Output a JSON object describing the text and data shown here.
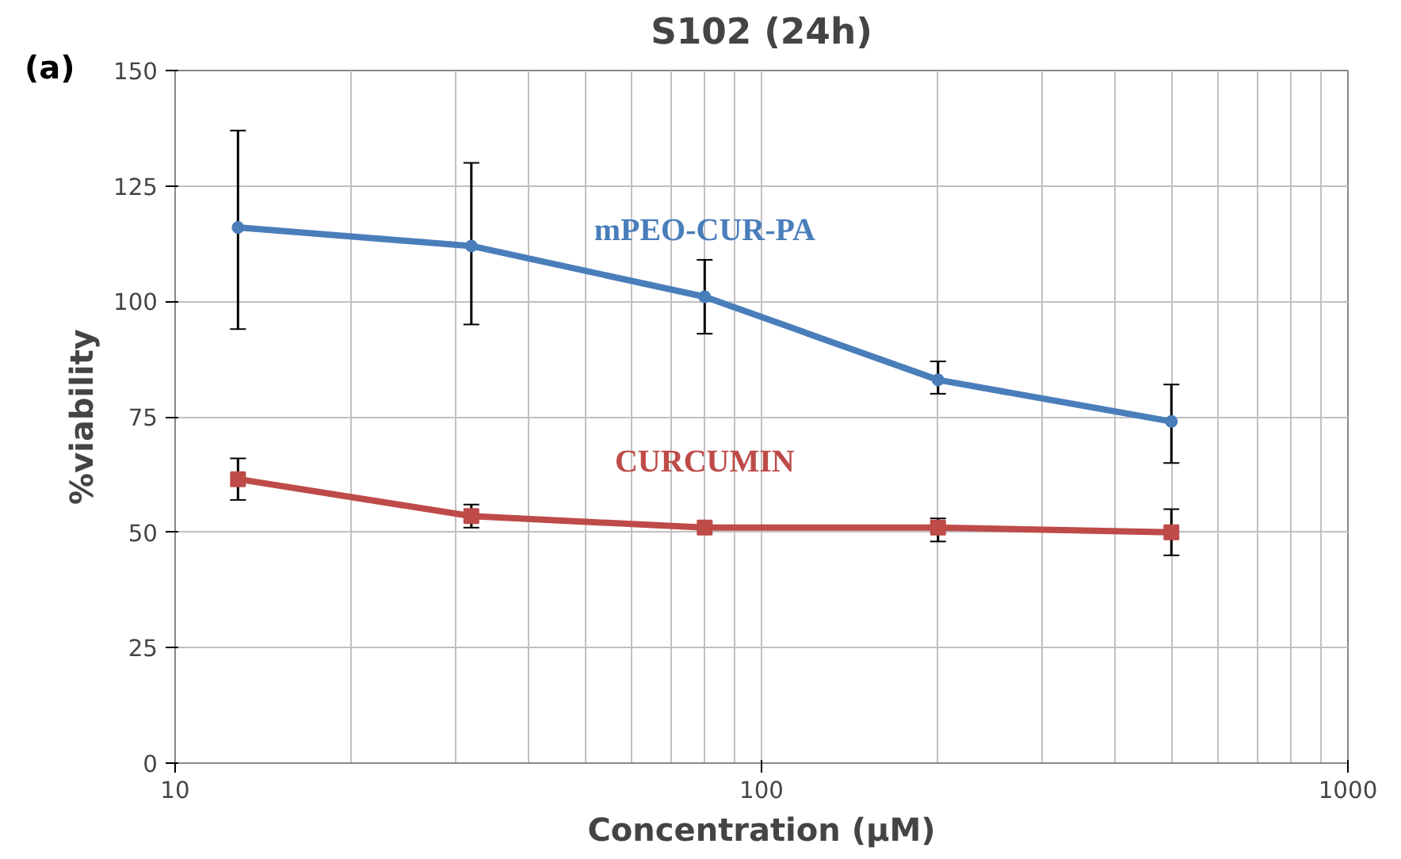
{
  "chart_data": {
    "type": "line",
    "title": "S102 (24h)",
    "xlabel": "Concentration (µM)",
    "ylabel": "%viability",
    "annotations": [
      "(a)"
    ],
    "x": [
      12.8,
      32,
      80,
      200,
      500
    ],
    "series": [
      {
        "name": "mPEO-CUR-PA",
        "color": "#4a7ebb",
        "marker": "circle",
        "values": [
          116,
          112,
          101,
          83,
          74
        ],
        "errors": [
          [
            94,
            137
          ],
          [
            95,
            130
          ],
          [
            93,
            109
          ],
          [
            80,
            87
          ],
          [
            65,
            82
          ]
        ]
      },
      {
        "name": "CURCUMIN",
        "color": "#be4b48",
        "marker": "square",
        "values": [
          61.5,
          53.5,
          51,
          51,
          50
        ],
        "errors": [
          [
            57,
            66
          ],
          [
            51,
            56
          ],
          null,
          [
            48,
            53
          ],
          [
            45,
            55
          ]
        ]
      }
    ],
    "log": "x",
    "xlim": [
      10,
      1000
    ],
    "xticks": [
      10,
      100,
      1000
    ],
    "ylim": [
      0,
      150
    ],
    "yticks": [
      0,
      25,
      50,
      75,
      100,
      125,
      150
    ],
    "grid": true,
    "legend": false
  }
}
